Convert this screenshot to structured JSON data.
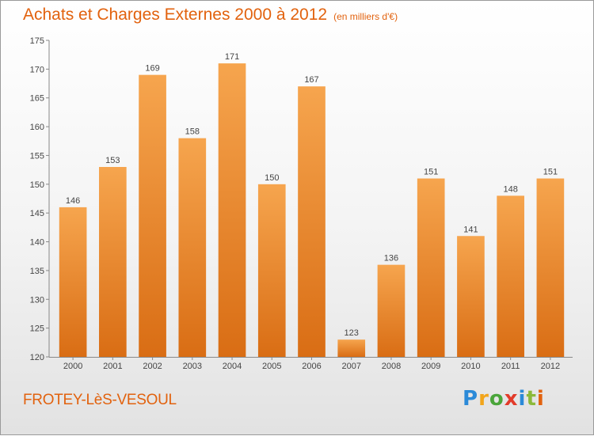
{
  "header": {
    "title": "Achats et Charges Externes 2000 à 2012",
    "unit": "(en milliers d'€)"
  },
  "footer": {
    "place": "FROTEY-LèS-VESOUL",
    "logo": "Proxiti"
  },
  "colors": {
    "bar_light": "#f6a54e",
    "bar_dark": "#d96d14",
    "title": "#e2620e",
    "axis": "#444444"
  },
  "chart_data": {
    "type": "bar",
    "title": "Achats et Charges Externes 2000 à 2012",
    "subtitle": "(en milliers d'€)",
    "categories": [
      "2000",
      "2001",
      "2002",
      "2003",
      "2004",
      "2005",
      "2006",
      "2007",
      "2008",
      "2009",
      "2010",
      "2011",
      "2012"
    ],
    "values": [
      146,
      153,
      169,
      158,
      171,
      150,
      167,
      123,
      136,
      151,
      141,
      148,
      151
    ],
    "data_labels": [
      "146",
      "153",
      "169",
      "158",
      "171",
      "150",
      "167",
      "123",
      "136",
      "151",
      "141",
      "148",
      "151"
    ],
    "yticks": [
      "120",
      "125",
      "130",
      "135",
      "140",
      "145",
      "150",
      "155",
      "160",
      "165",
      "170",
      "175"
    ],
    "xlabel": "",
    "ylabel": "",
    "ylim": [
      120,
      175
    ],
    "grid": false,
    "legend": "none"
  }
}
